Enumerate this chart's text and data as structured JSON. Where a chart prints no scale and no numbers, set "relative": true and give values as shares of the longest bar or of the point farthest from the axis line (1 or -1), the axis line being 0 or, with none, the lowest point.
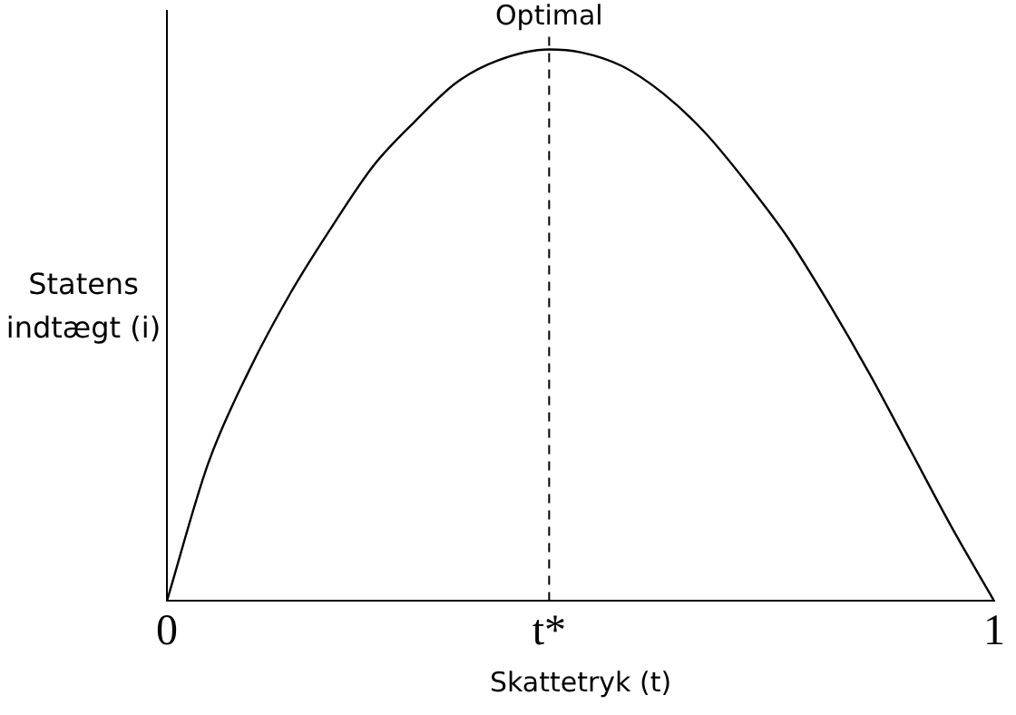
{
  "chart_data": {
    "type": "line",
    "relative": true,
    "xlabel": "Skattetryk (t)",
    "ylabel": "Statens indtægt (i)",
    "x": [
      0,
      0.05,
      0.1,
      0.15,
      0.2,
      0.25,
      0.3,
      0.35,
      0.4,
      0.462,
      0.5,
      0.55,
      0.6,
      0.65,
      0.7,
      0.75,
      0.8,
      0.85,
      0.9,
      0.95,
      1
    ],
    "series": [
      {
        "color": "#000000",
        "values": [
          0,
          0.25,
          0.42,
          0.56,
          0.68,
          0.79,
          0.87,
          0.94,
          0.98,
          1,
          0.995,
          0.97,
          0.92,
          0.85,
          0.76,
          0.66,
          0.54,
          0.41,
          0.27,
          0.13,
          0
        ]
      }
    ],
    "xlim": [
      0,
      1
    ],
    "xticks": [
      0,
      {
        "value": 0.462,
        "label": "t*"
      },
      1
    ],
    "ref_lines": [
      {
        "axis": "x",
        "value": 0.462,
        "label": "Optimal",
        "color": "#000000",
        "line_style": "dashed"
      }
    ],
    "grid": false,
    "legend": false,
    "marker": "none",
    "line_style": "solid"
  }
}
